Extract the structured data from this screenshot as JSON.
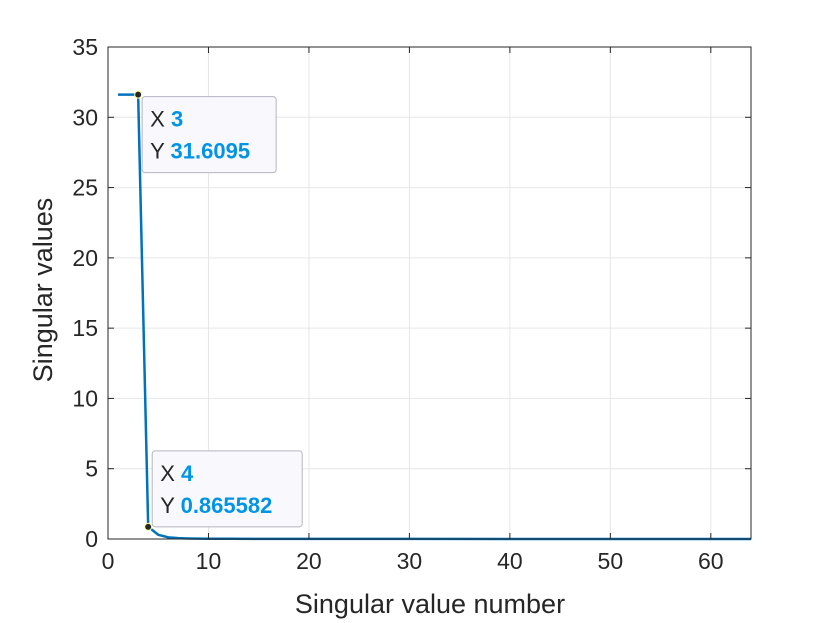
{
  "chart_data": {
    "type": "line",
    "title": "",
    "xlabel": "Singular value number",
    "ylabel": "Singular values",
    "xlim": [
      0,
      64
    ],
    "ylim": [
      0,
      35
    ],
    "xticks": [
      0,
      10,
      20,
      30,
      40,
      50,
      60
    ],
    "yticks": [
      0,
      5,
      10,
      15,
      20,
      25,
      30,
      35
    ],
    "grid": true,
    "line_color": "#0072BD",
    "series": [
      {
        "x": [
          1,
          2,
          3,
          4,
          5,
          6,
          7,
          8,
          9,
          10,
          12,
          15,
          20,
          30,
          40,
          50,
          60,
          64
        ],
        "y": [
          31.6095,
          31.6095,
          31.6095,
          0.865582,
          0.3,
          0.12,
          0.06,
          0.04,
          0.03,
          0.02,
          0.015,
          0.01,
          0.008,
          0.005,
          0.004,
          0.003,
          0.002,
          0.002
        ]
      }
    ],
    "datatips": [
      {
        "x_label": "X",
        "x_value": "3",
        "y_label": "Y",
        "y_value": "31.6095",
        "x": 3,
        "y": 31.6095
      },
      {
        "x_label": "X",
        "x_value": "4",
        "y_label": "Y",
        "y_value": "0.865582",
        "x": 4,
        "y": 0.865582
      }
    ],
    "datatip_value_color": "#0094E6"
  }
}
